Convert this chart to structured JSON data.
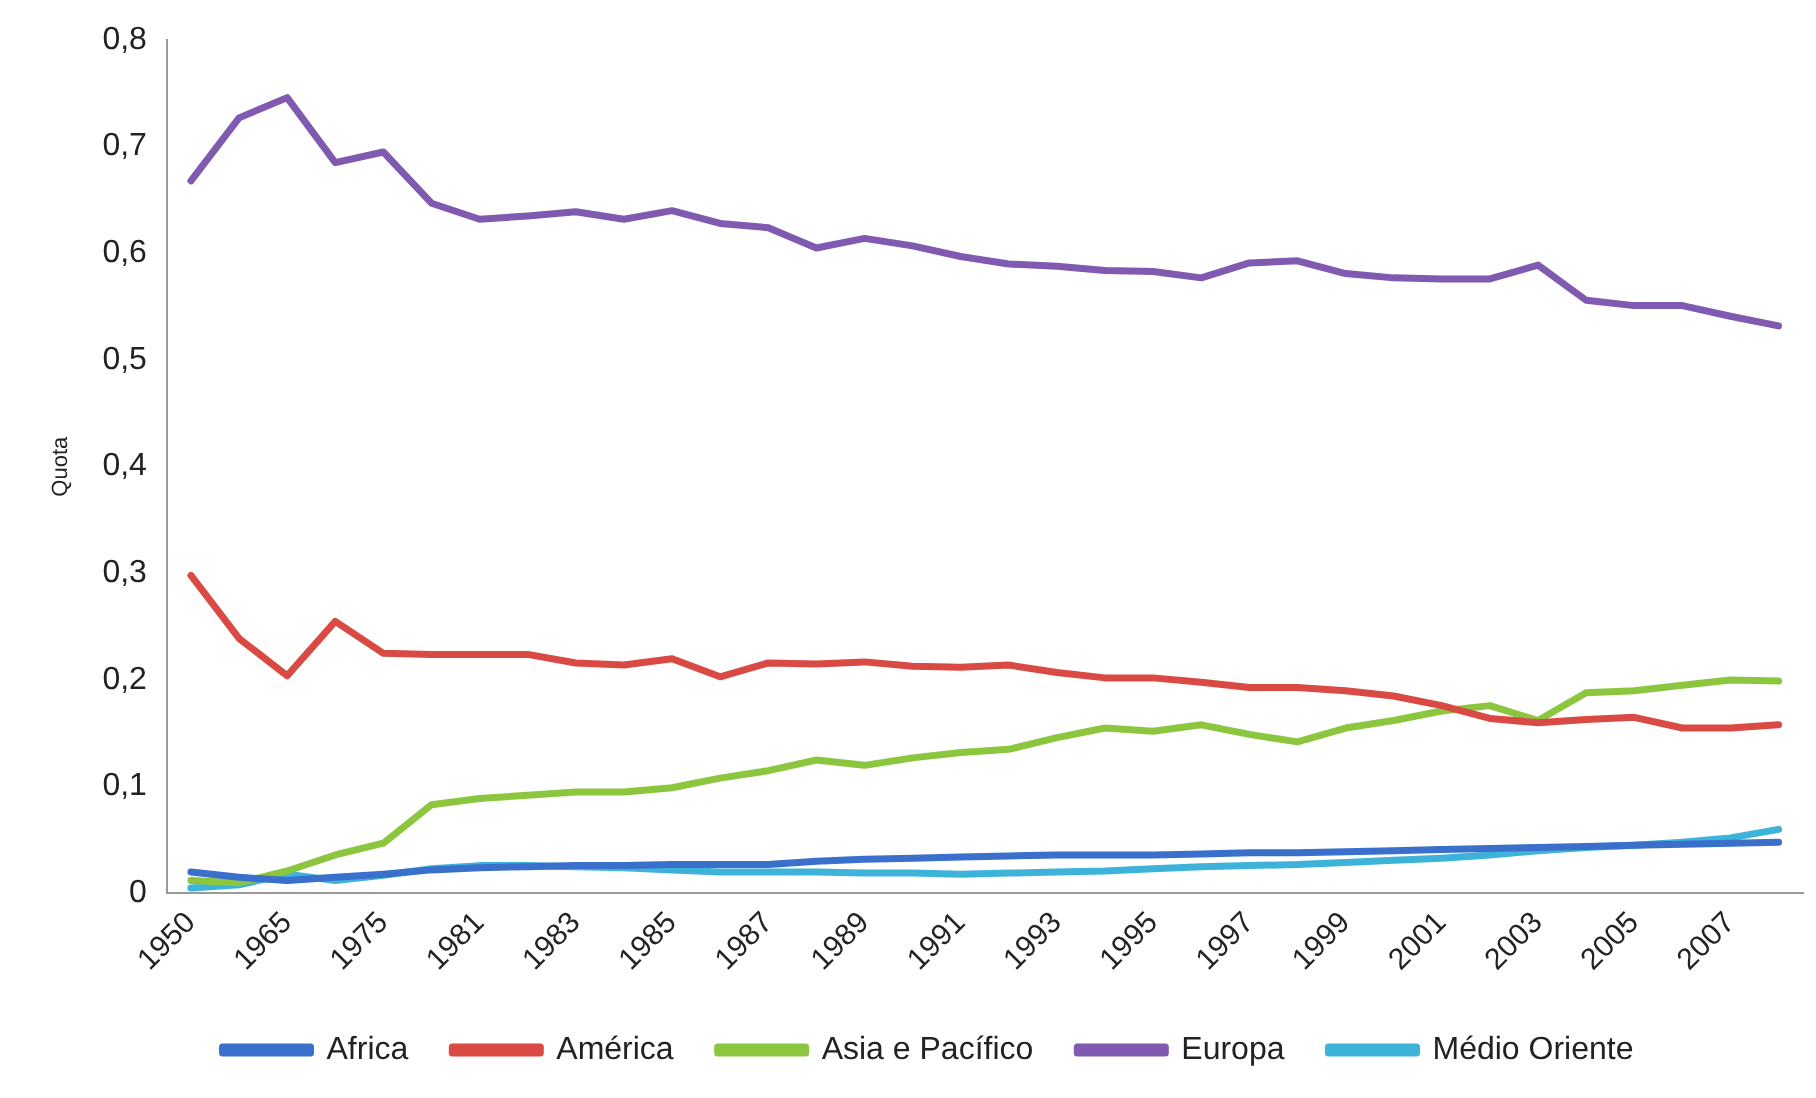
{
  "chart_data": {
    "type": "line",
    "ylabel": "Quota",
    "categories": [
      "1950",
      null,
      "1965",
      null,
      "1975",
      null,
      "1981",
      null,
      "1983",
      null,
      "1985",
      null,
      "1987",
      null,
      "1989",
      null,
      "1991",
      null,
      "1993",
      null,
      "1995",
      null,
      "1997",
      null,
      "1999",
      null,
      "2001",
      null,
      "2003",
      null,
      "2005",
      null,
      "2007",
      null
    ],
    "series": [
      {
        "name": "Africa",
        "color": "#3a6fcb",
        "values": [
          0.02,
          0.015,
          0.012,
          0.015,
          0.018,
          0.022,
          0.024,
          0.025,
          0.026,
          0.026,
          0.027,
          0.027,
          0.027,
          0.03,
          0.032,
          0.033,
          0.034,
          0.035,
          0.036,
          0.036,
          0.036,
          0.037,
          0.038,
          0.038,
          0.039,
          0.04,
          0.041,
          0.042,
          0.043,
          0.044,
          0.045,
          0.046,
          0.047,
          0.048
        ]
      },
      {
        "name": "América",
        "color": "#d94a44",
        "values": [
          0.298,
          0.239,
          0.204,
          0.255,
          0.225,
          0.224,
          0.224,
          0.224,
          0.216,
          0.214,
          0.22,
          0.203,
          0.216,
          0.215,
          0.217,
          0.213,
          0.212,
          0.214,
          0.207,
          0.202,
          0.202,
          0.198,
          0.193,
          0.193,
          0.19,
          0.185,
          0.176,
          0.164,
          0.16,
          0.163,
          0.165,
          0.155,
          0.155,
          0.158
        ]
      },
      {
        "name": "Asia e Pacífico",
        "color": "#8cc63f",
        "values": [
          0.012,
          0.01,
          0.021,
          0.036,
          0.047,
          0.083,
          0.089,
          0.092,
          0.095,
          0.095,
          0.099,
          0.108,
          0.115,
          0.125,
          0.12,
          0.127,
          0.132,
          0.135,
          0.146,
          0.155,
          0.152,
          0.158,
          0.149,
          0.142,
          0.155,
          0.162,
          0.171,
          0.176,
          0.162,
          0.188,
          0.19,
          0.195,
          0.2,
          0.199
        ]
      },
      {
        "name": "Europa",
        "color": "#7f5ab0",
        "values": [
          0.668,
          0.727,
          0.746,
          0.685,
          0.695,
          0.647,
          0.632,
          0.635,
          0.639,
          0.632,
          0.64,
          0.628,
          0.624,
          0.605,
          0.614,
          0.607,
          0.597,
          0.59,
          0.588,
          0.584,
          0.583,
          0.577,
          0.591,
          0.593,
          0.581,
          0.577,
          0.576,
          0.576,
          0.589,
          0.556,
          0.551,
          0.551,
          0.541,
          0.532
        ]
      },
      {
        "name": "Médio Oriente",
        "color": "#3eb3d9",
        "values": [
          0.005,
          0.008,
          0.018,
          0.012,
          0.017,
          0.023,
          0.026,
          0.026,
          0.025,
          0.024,
          0.022,
          0.02,
          0.02,
          0.02,
          0.019,
          0.019,
          0.018,
          0.019,
          0.02,
          0.021,
          0.023,
          0.025,
          0.026,
          0.027,
          0.029,
          0.031,
          0.033,
          0.036,
          0.04,
          0.043,
          0.045,
          0.048,
          0.052,
          0.06
        ]
      }
    ],
    "ylim": [
      0,
      0.8
    ],
    "yticks": [
      0,
      {
        "value": 0.1,
        "label": "0,1"
      },
      {
        "value": 0.2,
        "label": "0,2"
      },
      {
        "value": 0.3,
        "label": "0,3"
      },
      {
        "value": 0.4,
        "label": "0,4"
      },
      {
        "value": 0.5,
        "label": "0,5"
      },
      {
        "value": 0.6,
        "label": "0,6"
      },
      {
        "value": 0.7,
        "label": "0,7"
      },
      {
        "value": 0.8,
        "label": "0,8"
      }
    ],
    "grid": false,
    "legend": "bottom",
    "marker": "none",
    "line_style": "solid"
  }
}
